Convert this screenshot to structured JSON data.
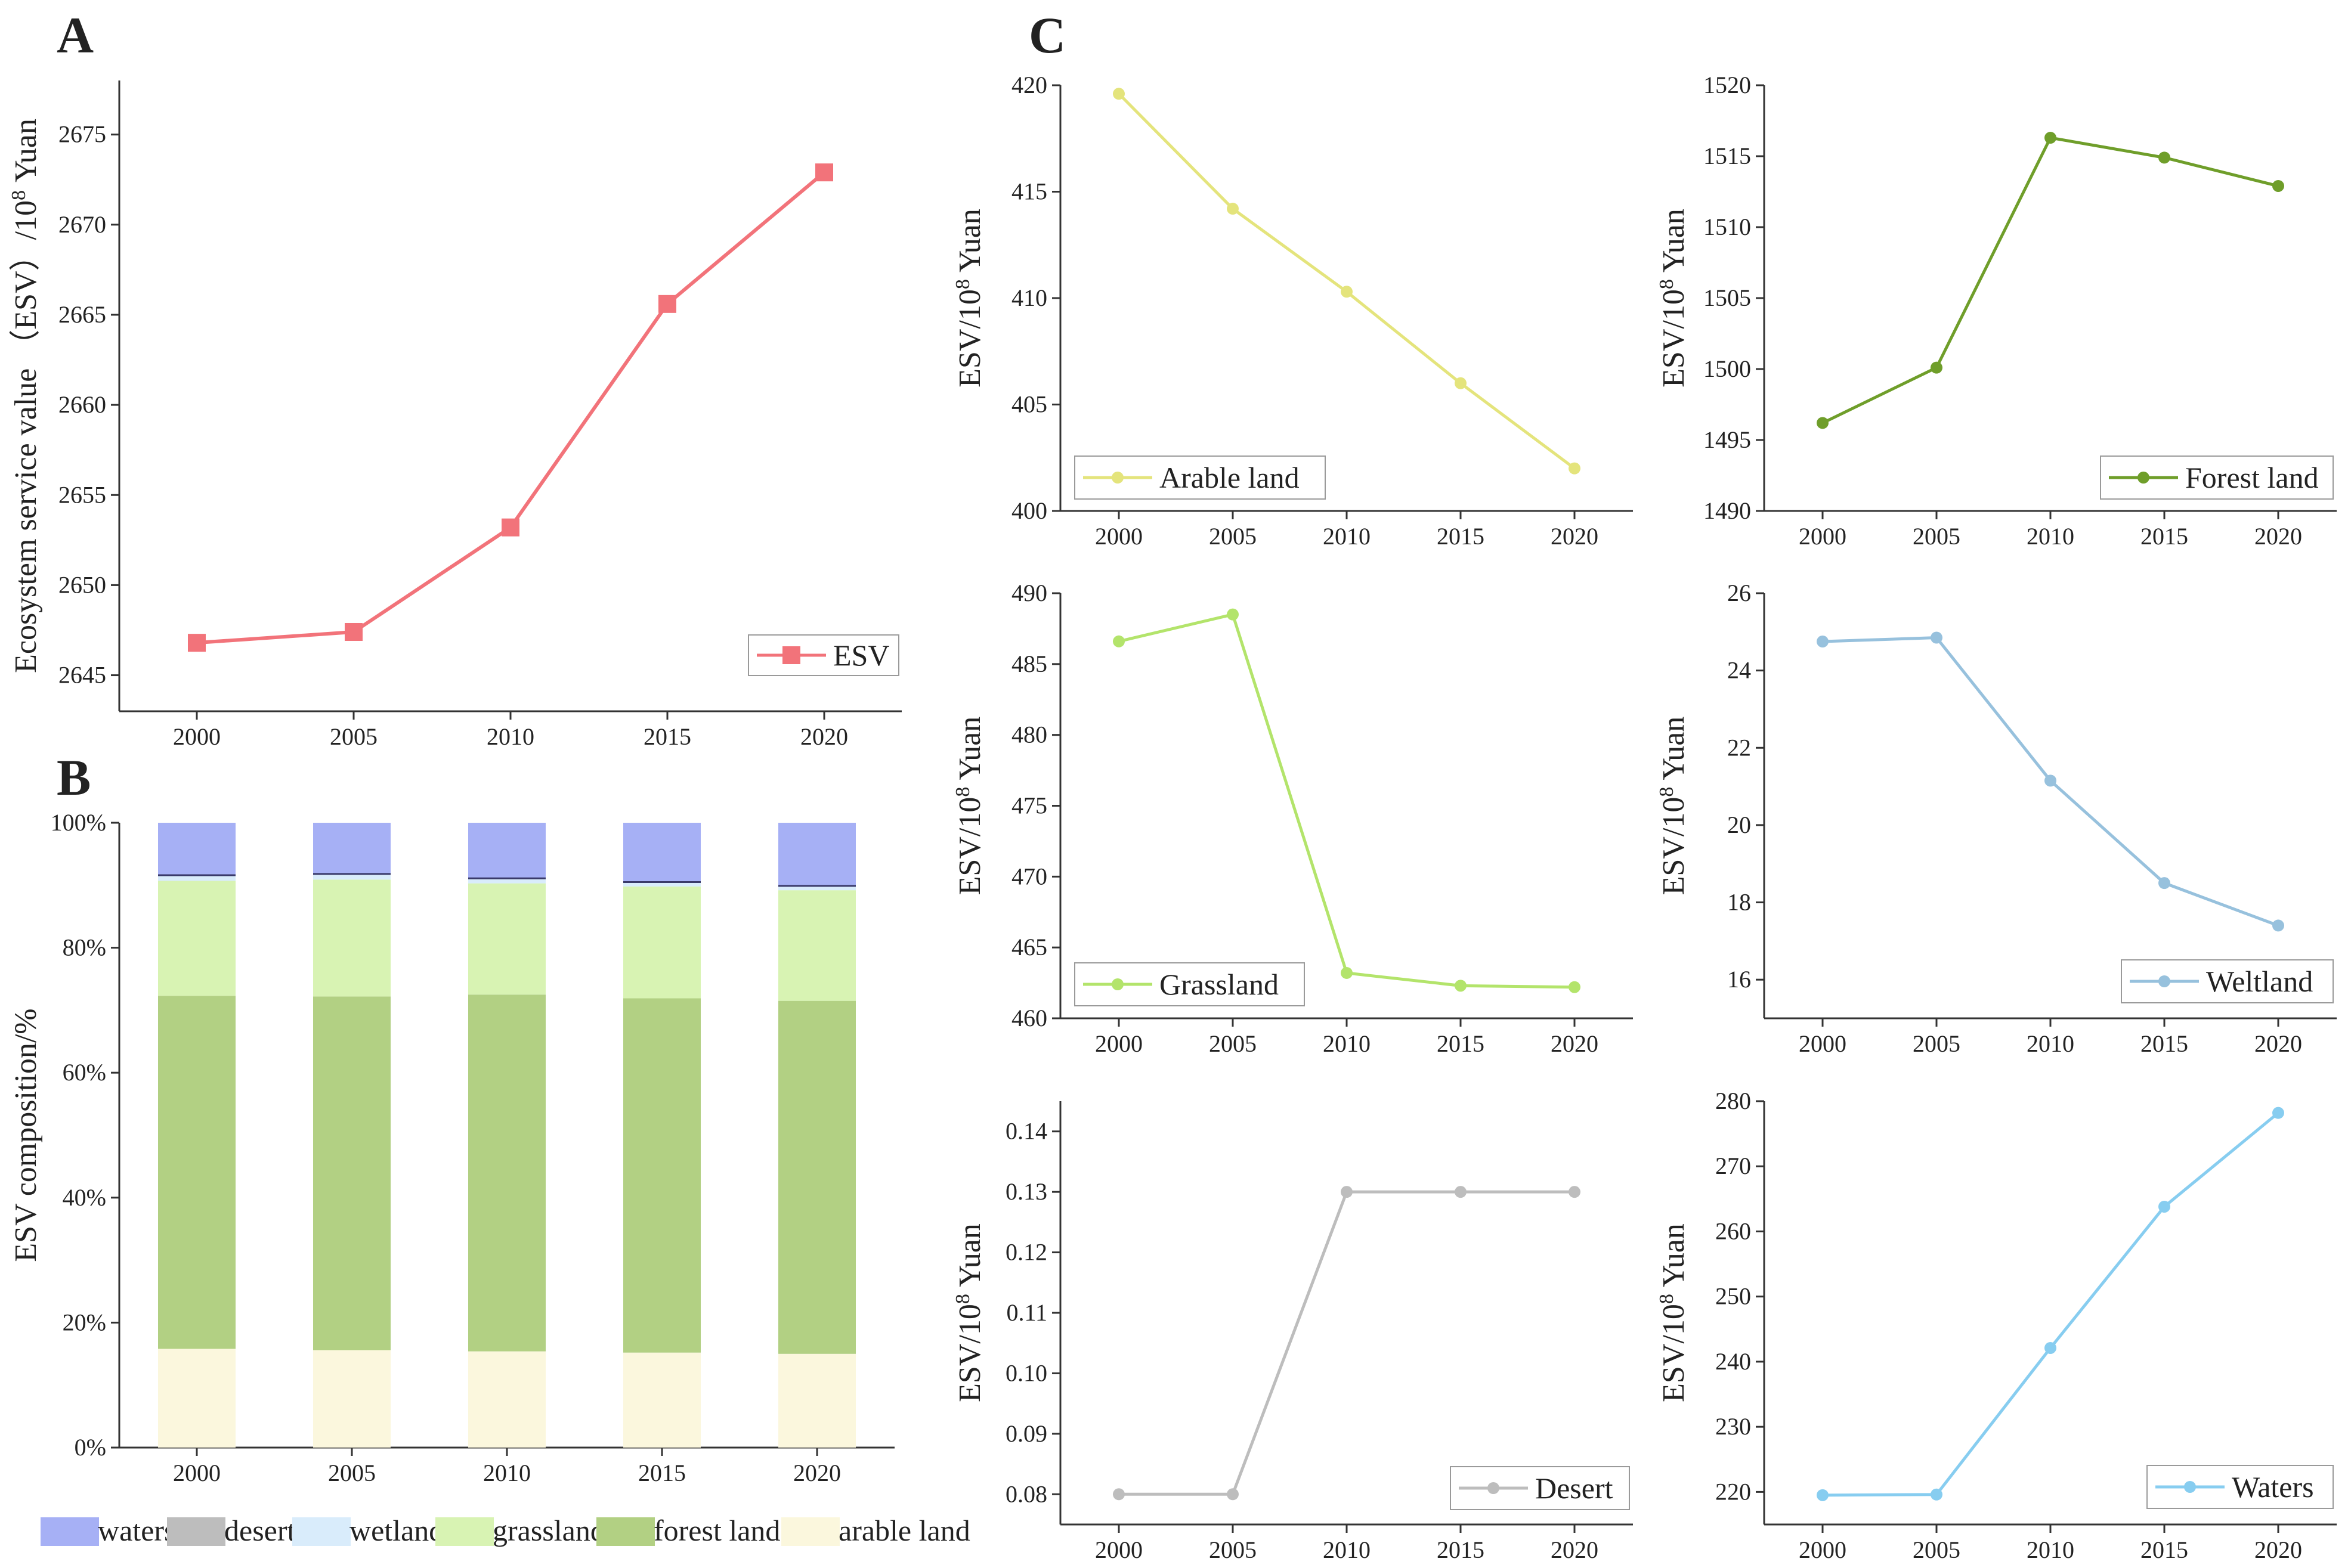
{
  "chart_data": [
    {
      "id": "A",
      "panel_label": "A",
      "type": "line",
      "x": [
        "2000",
        "2005",
        "2010",
        "2015",
        "2020"
      ],
      "ylim": [
        2643,
        2678
      ],
      "yticks": [
        2645,
        2650,
        2655,
        2660,
        2665,
        2670,
        2675
      ],
      "ylabel_parts": [
        "Ecosystem service value （ESV）/10",
        "8",
        " Yuan"
      ],
      "series": [
        {
          "name": "ESV",
          "color": "#f2737a",
          "marker": "square",
          "values": [
            2646.8,
            2647.4,
            2653.2,
            2665.6,
            2672.9
          ]
        }
      ],
      "legend": {
        "label": "ESV",
        "position": "bottom-right"
      }
    },
    {
      "id": "B",
      "panel_label": "B",
      "type": "bar",
      "stacked": true,
      "categories": [
        "2000",
        "2005",
        "2010",
        "2015",
        "2020"
      ],
      "yticks": [
        0,
        20,
        40,
        60,
        80,
        100
      ],
      "ytick_labels": [
        "0%",
        "20%",
        "40%",
        "60%",
        "80%",
        "100%"
      ],
      "ylabel": "ESV composition/%",
      "series": [
        {
          "name": "arable land",
          "color": "#fbf7dd",
          "values": [
            15.8,
            15.6,
            15.4,
            15.2,
            15.0
          ]
        },
        {
          "name": "forest land",
          "color": "#b2d083",
          "values": [
            56.5,
            56.6,
            57.1,
            56.7,
            56.5
          ]
        },
        {
          "name": "grassland",
          "color": "#d8f3b3",
          "values": [
            18.4,
            18.7,
            17.8,
            17.9,
            17.7
          ]
        },
        {
          "name": "wetland",
          "color": "#d9ecfb",
          "values": [
            0.9,
            0.9,
            0.8,
            0.7,
            0.7
          ]
        },
        {
          "name": "desert",
          "color": "#bdbdbd",
          "values": [
            0.0,
            0.0,
            0.0,
            0.0,
            0.0
          ]
        },
        {
          "name": "waters",
          "color": "#a6b0f5",
          "values": [
            8.4,
            8.2,
            8.9,
            9.5,
            10.1
          ]
        }
      ],
      "legend": {
        "order": [
          "waters",
          "desert",
          "wetland",
          "grassland",
          "forest land",
          "arable land"
        ],
        "position": "bottom"
      }
    },
    {
      "id": "C1",
      "panel_label": "C",
      "type": "line",
      "x": [
        "2000",
        "2005",
        "2010",
        "2015",
        "2020"
      ],
      "ylim": [
        400,
        420
      ],
      "yticks": [
        400,
        405,
        410,
        415,
        420
      ],
      "decimals": 0,
      "ylabel_parts": [
        "ESV/10",
        "8",
        " Yuan"
      ],
      "series": [
        {
          "name": "Arable land",
          "color": "#e4e47c",
          "marker": "circle",
          "values": [
            419.6,
            414.2,
            410.3,
            406.0,
            402.0
          ]
        }
      ],
      "legend": {
        "label": "Arable land",
        "position": "bottom-left"
      }
    },
    {
      "id": "C2",
      "type": "line",
      "x": [
        "2000",
        "2005",
        "2010",
        "2015",
        "2020"
      ],
      "ylim": [
        1490,
        1520
      ],
      "yticks": [
        1490,
        1495,
        1500,
        1505,
        1510,
        1515,
        1520
      ],
      "decimals": 0,
      "ylabel_parts": [
        "ESV/10",
        "8",
        " Yuan"
      ],
      "series": [
        {
          "name": "Forest land",
          "color": "#6f9e2a",
          "marker": "circle",
          "values": [
            1496.2,
            1500.1,
            1516.3,
            1514.9,
            1512.9
          ]
        }
      ],
      "legend": {
        "label": "Forest land",
        "position": "bottom-right"
      }
    },
    {
      "id": "C3",
      "type": "line",
      "x": [
        "2000",
        "2005",
        "2010",
        "2015",
        "2020"
      ],
      "ylim": [
        460,
        490
      ],
      "yticks": [
        460,
        465,
        470,
        475,
        480,
        485,
        490
      ],
      "decimals": 0,
      "ylabel_parts": [
        "ESV/10",
        "8",
        " Yuan"
      ],
      "series": [
        {
          "name": "Grassland",
          "color": "#b3e46b",
          "marker": "circle",
          "values": [
            486.6,
            488.5,
            463.2,
            462.3,
            462.2
          ]
        }
      ],
      "legend": {
        "label": "Grassland",
        "position": "bottom-left"
      }
    },
    {
      "id": "C4",
      "type": "line",
      "x": [
        "2000",
        "2005",
        "2010",
        "2015",
        "2020"
      ],
      "ylim": [
        15,
        26
      ],
      "yticks": [
        16,
        18,
        20,
        22,
        24,
        26
      ],
      "decimals": 0,
      "ylabel_parts": [
        "ESV/10",
        "8",
        " Yuan"
      ],
      "series": [
        {
          "name": "Weltland",
          "color": "#97c1dd",
          "marker": "circle",
          "values": [
            24.75,
            24.85,
            21.15,
            18.5,
            17.4
          ]
        }
      ],
      "legend": {
        "label": "Weltland",
        "position": "bottom-right"
      }
    },
    {
      "id": "C5",
      "type": "line",
      "x": [
        "2000",
        "2005",
        "2010",
        "2015",
        "2020"
      ],
      "ylim": [
        0.075,
        0.145
      ],
      "yticks": [
        0.08,
        0.09,
        0.1,
        0.11,
        0.12,
        0.13,
        0.14
      ],
      "decimals": 2,
      "ylabel_parts": [
        "ESV/10",
        "8",
        " Yuan"
      ],
      "series": [
        {
          "name": "Desert",
          "color": "#bdbdbd",
          "marker": "circle",
          "values": [
            0.08,
            0.08,
            0.13,
            0.13,
            0.13
          ]
        }
      ],
      "legend": {
        "label": "Desert",
        "position": "bottom-right"
      }
    },
    {
      "id": "C6",
      "type": "line",
      "x": [
        "2000",
        "2005",
        "2010",
        "2015",
        "2020"
      ],
      "ylim": [
        215,
        280
      ],
      "yticks": [
        220,
        230,
        240,
        250,
        260,
        270,
        280
      ],
      "decimals": 0,
      "ylabel_parts": [
        "ESV/10",
        "8",
        " Yuan"
      ],
      "series": [
        {
          "name": "Waters",
          "color": "#87cdf0",
          "marker": "circle",
          "values": [
            219.5,
            219.6,
            242.1,
            263.8,
            278.2
          ]
        }
      ],
      "legend": {
        "label": "Waters",
        "position": "bottom-right"
      }
    }
  ]
}
